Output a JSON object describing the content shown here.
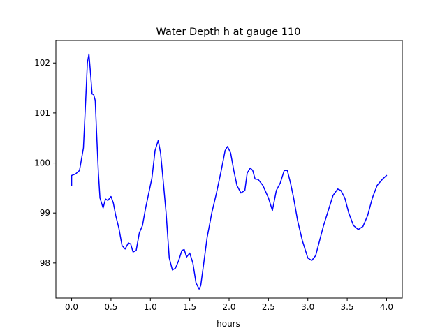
{
  "chart_data": {
    "type": "line",
    "title": "Water Depth h at gauge 110",
    "xlabel": "hours",
    "ylabel": "",
    "xlim": [
      -0.2,
      4.2
    ],
    "ylim": [
      97.3,
      102.45
    ],
    "xticks": [
      0.0,
      0.5,
      1.0,
      1.5,
      2.0,
      2.5,
      3.0,
      3.5,
      4.0
    ],
    "xtick_labels": [
      "0.0",
      "0.5",
      "1.0",
      "1.5",
      "2.0",
      "2.5",
      "3.0",
      "3.5",
      "4.0"
    ],
    "yticks": [
      98,
      99,
      100,
      101,
      102
    ],
    "ytick_labels": [
      "98",
      "99",
      "100",
      "101",
      "102"
    ],
    "grid": false,
    "series": [
      {
        "color": "#0000ff",
        "x": [
          0.0,
          0.0,
          0.05,
          0.1,
          0.15,
          0.18,
          0.2,
          0.22,
          0.24,
          0.26,
          0.28,
          0.3,
          0.32,
          0.34,
          0.36,
          0.4,
          0.43,
          0.46,
          0.5,
          0.53,
          0.56,
          0.6,
          0.64,
          0.68,
          0.72,
          0.75,
          0.78,
          0.82,
          0.86,
          0.9,
          0.94,
          0.98,
          1.02,
          1.06,
          1.1,
          1.13,
          1.16,
          1.2,
          1.24,
          1.28,
          1.32,
          1.36,
          1.4,
          1.43,
          1.46,
          1.5,
          1.54,
          1.58,
          1.62,
          1.64,
          1.67,
          1.72,
          1.78,
          1.84,
          1.9,
          1.95,
          1.98,
          2.02,
          2.06,
          2.1,
          2.15,
          2.2,
          2.23,
          2.27,
          2.3,
          2.33,
          2.37,
          2.43,
          2.5,
          2.55,
          2.6,
          2.65,
          2.7,
          2.74,
          2.78,
          2.82,
          2.87,
          2.93,
          3.0,
          3.05,
          3.1,
          3.15,
          3.2,
          3.26,
          3.32,
          3.38,
          3.42,
          3.47,
          3.52,
          3.58,
          3.64,
          3.7,
          3.76,
          3.82,
          3.88,
          3.95,
          4.0
        ],
        "y": [
          99.55,
          99.75,
          99.78,
          99.85,
          100.3,
          101.3,
          102.0,
          102.18,
          101.8,
          101.38,
          101.37,
          101.25,
          100.5,
          99.8,
          99.3,
          99.1,
          99.28,
          99.25,
          99.33,
          99.2,
          98.95,
          98.7,
          98.35,
          98.28,
          98.4,
          98.38,
          98.22,
          98.25,
          98.6,
          98.75,
          99.1,
          99.4,
          99.7,
          100.25,
          100.45,
          100.2,
          99.7,
          99.0,
          98.1,
          97.86,
          97.9,
          98.05,
          98.25,
          98.27,
          98.12,
          98.2,
          98.0,
          97.6,
          97.48,
          97.55,
          97.9,
          98.5,
          99.0,
          99.4,
          99.85,
          100.25,
          100.33,
          100.2,
          99.85,
          99.55,
          99.4,
          99.45,
          99.8,
          99.9,
          99.85,
          99.68,
          99.67,
          99.55,
          99.3,
          99.05,
          99.45,
          99.6,
          99.85,
          99.85,
          99.6,
          99.3,
          98.85,
          98.45,
          98.1,
          98.05,
          98.15,
          98.45,
          98.75,
          99.05,
          99.35,
          99.48,
          99.45,
          99.3,
          99.0,
          98.75,
          98.67,
          98.73,
          98.95,
          99.3,
          99.55,
          99.68,
          99.75
        ]
      }
    ]
  }
}
